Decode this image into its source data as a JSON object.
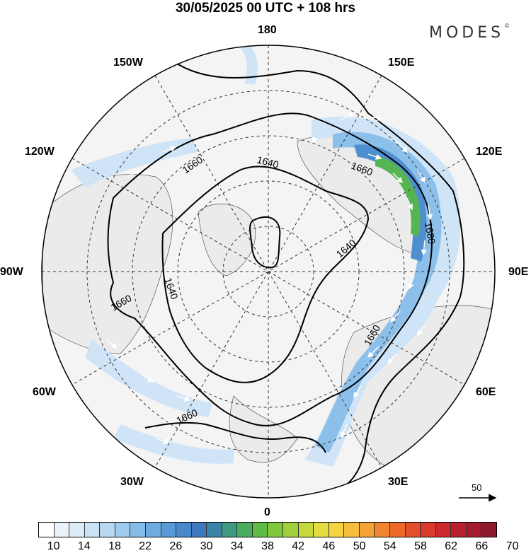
{
  "title": "30/05/2025  00 UTC  + 108 hrs",
  "brand": "MODES",
  "brand_mark": "©",
  "longitude_labels": {
    "lon_180": "180",
    "lon_150E": "150E",
    "lon_120E": "120E",
    "lon_90E": "90E",
    "lon_60E": "60E",
    "lon_30E": "30E",
    "lon_0": "0",
    "lon_30W": "30W",
    "lon_60W": "60W",
    "lon_90W": "90W",
    "lon_120W": "120W",
    "lon_150W": "150W"
  },
  "contour_labels": {
    "c1660_nw": "1660",
    "c1640_n": "1640",
    "c1660_ne": "1660",
    "c1680_e": "1680",
    "c1640_e": "1640",
    "c1660_w": "1660",
    "c1640_w": "1640",
    "c1660_se": "1660",
    "c1660_sw": "1660"
  },
  "reference_vector_label": "50",
  "colorbar": {
    "colors": [
      "#ffffff",
      "#eaf3fb",
      "#dcecf8",
      "#cce3f5",
      "#b8d8f1",
      "#a1cbee",
      "#88bce8",
      "#6eabe0",
      "#5999d6",
      "#4a88cc",
      "#3d78be",
      "#3a84a8",
      "#3f9a82",
      "#48ad5e",
      "#5fbb45",
      "#80c63c",
      "#a2d03b",
      "#c5d93d",
      "#e3dd40",
      "#f5d443",
      "#f7bd3d",
      "#f5a236",
      "#f28530",
      "#ec692c",
      "#e34f2a",
      "#d83a2b",
      "#cb2a2c",
      "#b91f2f",
      "#a61b30",
      "#8f1a2e"
    ],
    "tick_labels": [
      "10",
      "14",
      "18",
      "22",
      "26",
      "30",
      "34",
      "38",
      "42",
      "46",
      "50",
      "54",
      "58",
      "62",
      "66",
      "70"
    ]
  },
  "colors": {
    "jet_light": "#cfe4f6",
    "jet_mid": "#8cc0ea",
    "jet_strong": "#4f8fd0",
    "jet_core": "#56b453",
    "land_fill": "#eeeeee",
    "ocean_fill": "#f4f4f4"
  }
}
